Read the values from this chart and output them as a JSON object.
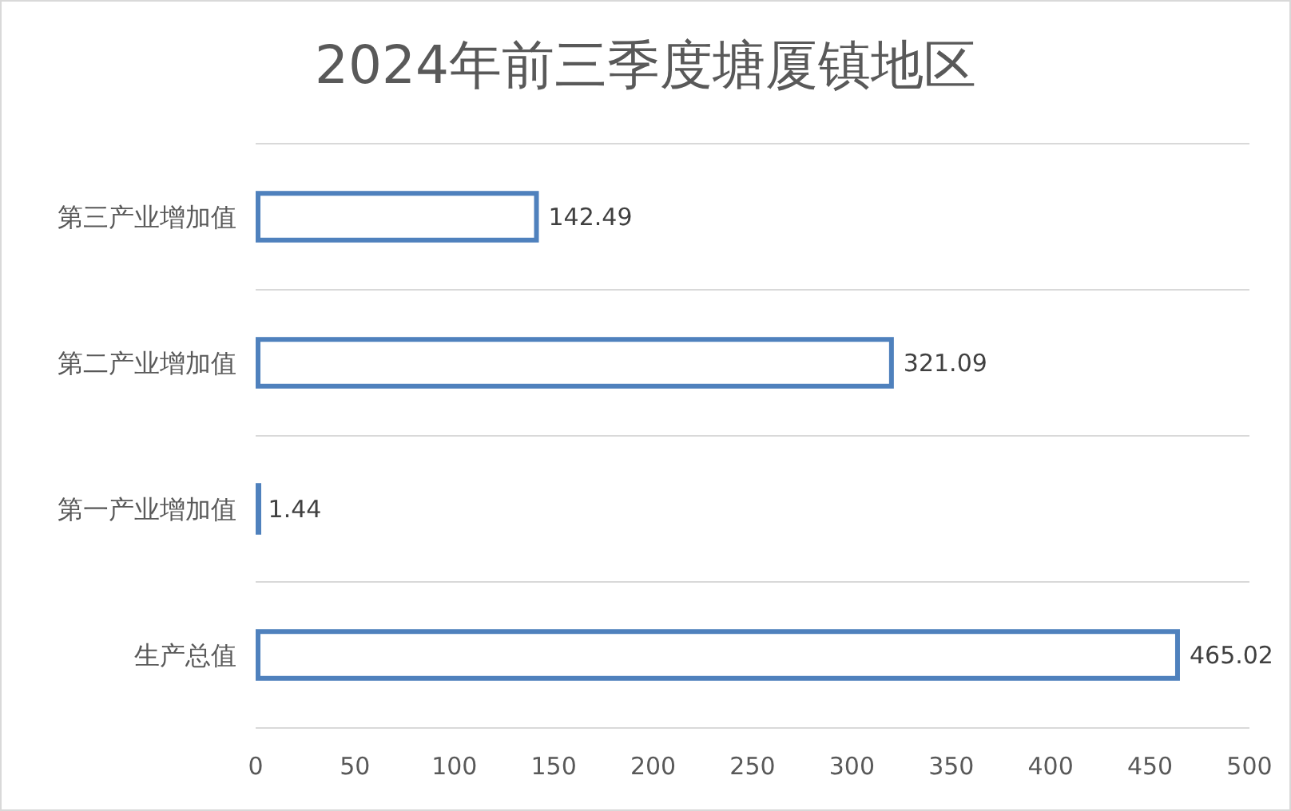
{
  "chart_data": {
    "type": "bar",
    "orientation": "horizontal",
    "title": "2024年前三季度塘厦镇地区",
    "categories": [
      "第三产业增加值",
      "第二产业增加值",
      "第一产业增加值",
      "生产总值"
    ],
    "values": [
      142.49,
      321.09,
      1.44,
      465.02
    ],
    "color": "#4f81bd",
    "data_labels": true,
    "xlim": [
      0,
      500
    ],
    "xticks": [
      0,
      50,
      100,
      150,
      200,
      250,
      300,
      350,
      400,
      450,
      500
    ],
    "grid": "y"
  }
}
